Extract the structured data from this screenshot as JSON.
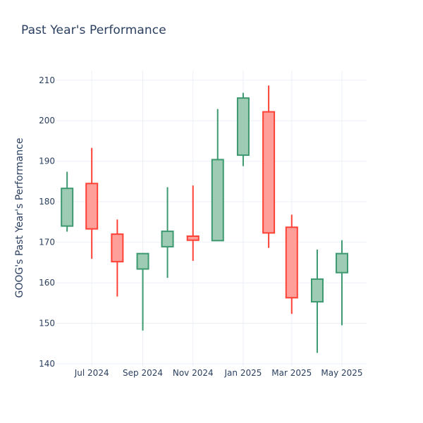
{
  "chart_data": {
    "type": "candlestick",
    "title": "Past Year's Performance",
    "xlabel": "",
    "ylabel": "GOOG's Past Year's Performance",
    "ylim": [
      139.3,
      212.4
    ],
    "y_ticks": [
      140,
      150,
      160,
      170,
      180,
      190,
      200,
      210
    ],
    "x_ticks": [
      {
        "date": "2024-07-01",
        "label": "Jul 2024"
      },
      {
        "date": "2024-09-01",
        "label": "Sep 2024"
      },
      {
        "date": "2024-11-01",
        "label": "Nov 2024"
      },
      {
        "date": "2025-01-01",
        "label": "Jan 2025"
      },
      {
        "date": "2025-03-01",
        "label": "Mar 2025"
      },
      {
        "date": "2025-05-01",
        "label": "May 2025"
      }
    ],
    "xlim": [
      "2024-05-19",
      "2025-05-31"
    ],
    "grid": true,
    "colors": {
      "increasing_line": "#3d9970",
      "increasing_fill": "#9ecbb3",
      "decreasing_line": "#ff4136",
      "decreasing_fill": "#ff9f9a",
      "grid": "#ebf0f8",
      "text": "#2a3f5f"
    },
    "series": [
      {
        "date": "2024-06-01",
        "open": 174.0,
        "high": 187.4,
        "low": 172.6,
        "close": 183.3
      },
      {
        "date": "2024-07-01",
        "open": 184.5,
        "high": 193.3,
        "low": 165.9,
        "close": 173.3
      },
      {
        "date": "2024-08-01",
        "open": 172.0,
        "high": 175.6,
        "low": 156.6,
        "close": 165.2
      },
      {
        "date": "2024-09-01",
        "open": 163.4,
        "high": 167.2,
        "low": 148.2,
        "close": 167.2
      },
      {
        "date": "2024-10-01",
        "open": 168.9,
        "high": 183.6,
        "low": 161.2,
        "close": 172.7
      },
      {
        "date": "2024-11-01",
        "open": 171.5,
        "high": 184.0,
        "low": 165.4,
        "close": 170.5
      },
      {
        "date": "2024-12-01",
        "open": 170.4,
        "high": 202.9,
        "low": 170.4,
        "close": 190.4
      },
      {
        "date": "2025-01-01",
        "open": 191.5,
        "high": 206.9,
        "low": 188.8,
        "close": 205.6
      },
      {
        "date": "2025-02-01",
        "open": 202.2,
        "high": 208.7,
        "low": 168.6,
        "close": 172.3
      },
      {
        "date": "2025-03-01",
        "open": 173.7,
        "high": 176.8,
        "low": 152.3,
        "close": 156.3
      },
      {
        "date": "2025-04-01",
        "open": 155.3,
        "high": 168.2,
        "low": 142.7,
        "close": 160.9
      },
      {
        "date": "2025-05-01",
        "open": 162.5,
        "high": 170.5,
        "low": 149.5,
        "close": 167.2
      }
    ]
  }
}
